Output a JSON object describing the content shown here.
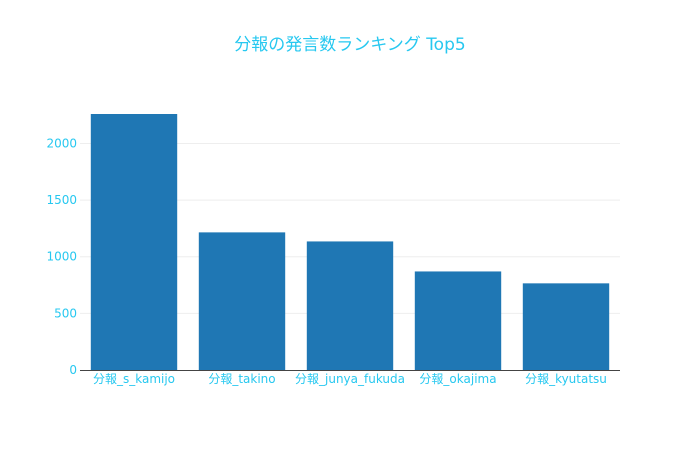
{
  "colors": {
    "bar": "#1f77b4",
    "text": "#27c8f0",
    "grid": "#eeeeee",
    "axis": "#444444",
    "background": "#ffffff"
  },
  "chart_data": {
    "type": "bar",
    "title": "分報の発言数ランキング Top5",
    "xlabel": "",
    "ylabel": "",
    "categories": [
      "分報_s_kamijo",
      "分報_takino",
      "分報_junya_fukuda",
      "分報_okajima",
      "分報_kyutatsu"
    ],
    "values": [
      2260,
      1215,
      1135,
      870,
      765
    ],
    "ylim": [
      0,
      2260
    ],
    "yticks": [
      0,
      500,
      1000,
      1500,
      2000
    ],
    "grid": "horizontal",
    "legend": "none"
  }
}
